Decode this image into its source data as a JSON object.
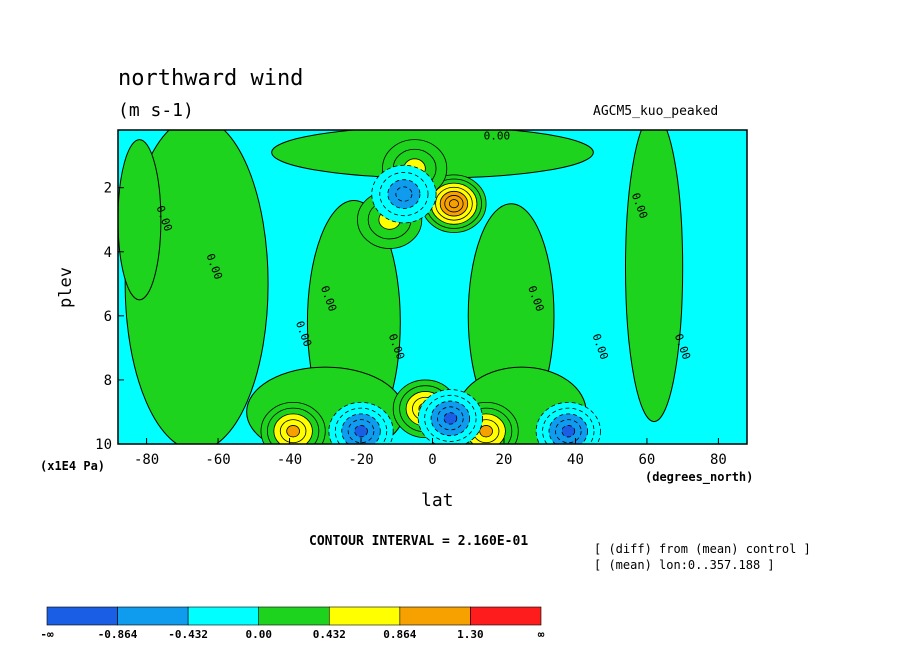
{
  "chart_data": {
    "type": "heatmap",
    "title": "northward wind",
    "subtitle": "(m s-1)",
    "run_label": "AGCM5_kuo_peaked",
    "xlabel": "lat",
    "xunits": "(degrees_north)",
    "ylabel": "plev",
    "yunits": "(x1E4 Pa)",
    "xlim": [
      -88,
      88
    ],
    "ylim": [
      10,
      0.2
    ],
    "x_ticks": [
      -80,
      -60,
      -40,
      -20,
      0,
      20,
      40,
      60,
      80
    ],
    "x_tick_labels": [
      "-80",
      "-60",
      "-40",
      "-20",
      "0",
      "20",
      "40",
      "60",
      "80"
    ],
    "y_ticks": [
      2,
      4,
      6,
      8,
      10
    ],
    "y_tick_labels": [
      "2",
      "4",
      "6",
      "8",
      "10"
    ],
    "contour_interval": "CONTOUR INTERVAL = 2.160E-01",
    "contour_label": "0.00",
    "notes": [
      "[ (diff) from (mean) control ]",
      "[ (mean) lon:0..357.188 ]"
    ],
    "colorbar": {
      "colors": [
        "#1a5ee6",
        "#0f9bee",
        "#00ffff",
        "#1ed31e",
        "#ffff00",
        "#f7a100",
        "#ff1c1c"
      ],
      "labels": [
        "-∞",
        "-0.864",
        "-0.432",
        "0.00",
        "0.432",
        "0.864",
        "1.30",
        "∞"
      ]
    },
    "features": [
      {
        "level": 0.2,
        "lat": -39,
        "plev": 9.6,
        "value": 0.9
      },
      {
        "level": 0.2,
        "lat": 15,
        "plev": 9.6,
        "value": 0.9
      },
      {
        "level": 0.2,
        "lat": -2,
        "plev": 8.9,
        "value": 1.0
      },
      {
        "level": 0.2,
        "lat": 6,
        "plev": 2.5,
        "value": 1.3
      },
      {
        "level": 0.2,
        "lat": -5,
        "plev": 1.4,
        "value": 0.6
      },
      {
        "level": 0.2,
        "lat": -12,
        "plev": 3.0,
        "value": 0.5
      },
      {
        "level": 0.2,
        "lat": -20,
        "plev": 9.6,
        "value": -0.9
      },
      {
        "level": 0.2,
        "lat": 5,
        "plev": 9.2,
        "value": -0.9
      },
      {
        "level": 0.2,
        "lat": 38,
        "plev": 9.6,
        "value": -0.9
      },
      {
        "level": 0.2,
        "lat": -8,
        "plev": 2.2,
        "value": -0.7
      }
    ]
  }
}
